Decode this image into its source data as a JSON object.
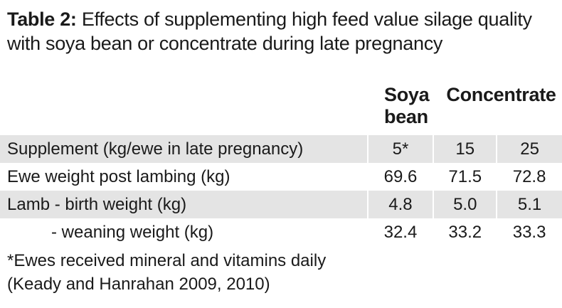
{
  "title": {
    "lead": "Table 2:",
    "text": " Effects of supplementing high feed value silage quality with soya bean or concentrate during late pregnancy"
  },
  "columns": {
    "soya": "Soya bean",
    "concentrate": "Concentrate"
  },
  "rows": [
    {
      "label": "Supplement (kg/ewe in late pregnancy)",
      "values": [
        "5*",
        "15",
        "25"
      ]
    },
    {
      "label": "Ewe weight post lambing (kg)",
      "values": [
        "69.6",
        "71.5",
        "72.8"
      ]
    },
    {
      "label": "Lamb - birth weight (kg)",
      "values": [
        "4.8",
        "5.0",
        "5.1"
      ]
    },
    {
      "label": "- weaning weight (kg)",
      "values": [
        "32.4",
        "33.2",
        "33.3"
      ]
    }
  ],
  "footnotes": [
    "*Ewes received mineral and vitamins daily",
    "(Keady and Hanrahan 2009, 2010)"
  ],
  "colors": {
    "row_shade": "#e4e4e4",
    "text": "#1a1a1a"
  }
}
